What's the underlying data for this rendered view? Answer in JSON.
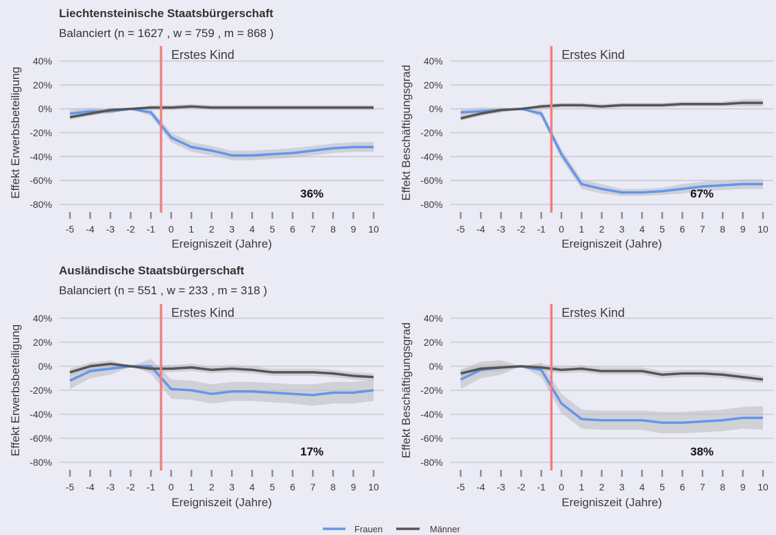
{
  "colors": {
    "background": "#EBEBF5",
    "grid": "#C9C9D1",
    "women": "#6495ED",
    "men": "#555555",
    "ribbon": "#BEBEC3",
    "event_line": "#F08080",
    "tick_mark": "#8C8C8C"
  },
  "sections": [
    {
      "title": "Liechtensteinische Staatsbürgerschaft",
      "subtitle": "Balanciert  (n = 1627 , w = 759 , m = 868 )"
    },
    {
      "title": "Ausländische Staatsbürgerschaft",
      "subtitle": "Balanciert  (n = 551 , w = 233 , m = 318 )"
    }
  ],
  "legend": {
    "items": [
      {
        "label": "Frauen",
        "color": "#6495ED"
      },
      {
        "label": "Männer",
        "color": "#555555"
      }
    ]
  },
  "chart_data": [
    {
      "type": "line",
      "section": 0,
      "ylabel": "Effekt  Erwerbsbeteiligung",
      "xlabel": "Ereigniszeit (Jahre)",
      "event_label": "Erstes Kind",
      "event_x": -0.5,
      "annotation": "36%",
      "x": [
        -5,
        -4,
        -3,
        -2,
        -1,
        0,
        1,
        2,
        3,
        4,
        5,
        6,
        7,
        8,
        9,
        10
      ],
      "x_tick_labels": [
        "-5",
        "-4",
        "-3",
        "-2",
        "-1",
        "0",
        "1",
        "2",
        "3",
        "4",
        "5",
        "6",
        "7",
        "8",
        "9",
        "10"
      ],
      "xlim": [
        -5.5,
        10.5
      ],
      "yticks": [
        40,
        20,
        0,
        -20,
        -40,
        -60,
        -80
      ],
      "ytick_labels": [
        "40%",
        "20%",
        "0%",
        "-20%",
        "-40%",
        "-60%",
        "-80%"
      ],
      "ylim": [
        -80,
        40
      ],
      "grid": true,
      "series": [
        {
          "name": "Frauen",
          "values": [
            -4,
            -2,
            -2,
            0,
            -3,
            -24,
            -32,
            -35,
            -39,
            -39,
            -38,
            -37,
            -35,
            -33,
            -32,
            -32
          ],
          "lower": [
            -7,
            -5,
            -4,
            0,
            -6,
            -28,
            -36,
            -39,
            -43,
            -43,
            -42,
            -41,
            -39,
            -37,
            -36,
            -36
          ],
          "upper": [
            -1,
            1,
            0,
            0,
            0,
            -20,
            -28,
            -31,
            -35,
            -35,
            -34,
            -33,
            -31,
            -29,
            -28,
            -28
          ]
        },
        {
          "name": "Männer",
          "values": [
            -7,
            -4,
            -1,
            0,
            1,
            1,
            2,
            1,
            1,
            1,
            1,
            1,
            1,
            1,
            1,
            1
          ],
          "lower": [
            -9,
            -6,
            -3,
            0,
            -1,
            -1,
            0,
            -1,
            -1,
            -1,
            -1,
            -1,
            -1,
            -1,
            -1,
            -1
          ],
          "upper": [
            -5,
            -2,
            1,
            0,
            3,
            3,
            4,
            3,
            3,
            3,
            3,
            3,
            3,
            3,
            3,
            3
          ]
        }
      ]
    },
    {
      "type": "line",
      "section": 0,
      "ylabel": "Effekt  Beschäftigungsgrad",
      "xlabel": "Ereigniszeit (Jahre)",
      "event_label": "Erstes Kind",
      "event_x": -0.5,
      "annotation": "67%",
      "x": [
        -5,
        -4,
        -3,
        -2,
        -1,
        0,
        1,
        2,
        3,
        4,
        5,
        6,
        7,
        8,
        9,
        10
      ],
      "x_tick_labels": [
        "-5",
        "-4",
        "-3",
        "-2",
        "-1",
        "0",
        "1",
        "2",
        "3",
        "4",
        "5",
        "6",
        "7",
        "8",
        "9",
        "10"
      ],
      "xlim": [
        -5.5,
        10.5
      ],
      "yticks": [
        40,
        20,
        0,
        -20,
        -40,
        -60,
        -80
      ],
      "ytick_labels": [
        "40%",
        "20%",
        "0%",
        "-20%",
        "-40%",
        "-60%",
        "-80%"
      ],
      "ylim": [
        -80,
        40
      ],
      "grid": true,
      "series": [
        {
          "name": "Frauen",
          "values": [
            -3,
            -2,
            -1,
            0,
            -4,
            -38,
            -63,
            -67,
            -70,
            -70,
            -69,
            -67,
            -65,
            -64,
            -63,
            -63
          ],
          "lower": [
            -6,
            -5,
            -3,
            0,
            -7,
            -42,
            -67,
            -71,
            -73,
            -73,
            -72,
            -71,
            -69,
            -68,
            -67,
            -67
          ],
          "upper": [
            0,
            1,
            1,
            0,
            -1,
            -34,
            -59,
            -63,
            -67,
            -67,
            -66,
            -63,
            -61,
            -60,
            -59,
            -59
          ]
        },
        {
          "name": "Männer",
          "values": [
            -8,
            -4,
            -1,
            0,
            2,
            3,
            3,
            2,
            3,
            3,
            3,
            4,
            4,
            4,
            5,
            5
          ],
          "lower": [
            -10,
            -6,
            -3,
            0,
            0,
            1,
            1,
            0,
            1,
            1,
            1,
            2,
            2,
            2,
            2,
            2
          ],
          "upper": [
            -6,
            -2,
            1,
            0,
            4,
            5,
            5,
            4,
            5,
            5,
            5,
            6,
            6,
            6,
            8,
            8
          ]
        }
      ]
    },
    {
      "type": "line",
      "section": 1,
      "ylabel": "Effekt  Erwerbsbeteiligung",
      "xlabel": "Ereigniszeit (Jahre)",
      "event_label": "Erstes Kind",
      "event_x": -0.5,
      "annotation": "17%",
      "x": [
        -5,
        -4,
        -3,
        -2,
        -1,
        0,
        1,
        2,
        3,
        4,
        5,
        6,
        7,
        8,
        9,
        10
      ],
      "x_tick_labels": [
        "-5",
        "-4",
        "-3",
        "-2",
        "-1",
        "0",
        "1",
        "2",
        "3",
        "4",
        "5",
        "6",
        "7",
        "8",
        "9",
        "10"
      ],
      "xlim": [
        -5.5,
        10.5
      ],
      "yticks": [
        40,
        20,
        0,
        -20,
        -40,
        -60,
        -80
      ],
      "ytick_labels": [
        "40%",
        "20%",
        "0%",
        "-20%",
        "-40%",
        "-60%",
        "-80%"
      ],
      "ylim": [
        -80,
        40
      ],
      "grid": true,
      "series": [
        {
          "name": "Frauen",
          "values": [
            -12,
            -4,
            -2,
            0,
            0,
            -19,
            -20,
            -23,
            -21,
            -21,
            -22,
            -23,
            -24,
            -22,
            -22,
            -20
          ],
          "lower": [
            -19,
            -10,
            -7,
            0,
            -6,
            -27,
            -28,
            -31,
            -29,
            -29,
            -30,
            -31,
            -33,
            -31,
            -31,
            -29
          ],
          "upper": [
            -5,
            2,
            3,
            0,
            6,
            -11,
            -12,
            -15,
            -13,
            -13,
            -14,
            -15,
            -15,
            -13,
            -13,
            -11
          ]
        },
        {
          "name": "Männer",
          "values": [
            -5,
            0,
            2,
            0,
            -2,
            -2,
            -1,
            -3,
            -2,
            -3,
            -5,
            -5,
            -5,
            -6,
            -8,
            -9
          ],
          "lower": [
            -8,
            -3,
            -1,
            0,
            -5,
            -5,
            -4,
            -6,
            -5,
            -6,
            -8,
            -8,
            -8,
            -9,
            -11,
            -12
          ],
          "upper": [
            -2,
            3,
            5,
            0,
            1,
            1,
            2,
            0,
            1,
            0,
            -2,
            -2,
            -2,
            -3,
            -5,
            -6
          ]
        }
      ]
    },
    {
      "type": "line",
      "section": 1,
      "ylabel": "Effekt  Beschäftigungsgrad",
      "xlabel": "Ereigniszeit (Jahre)",
      "event_label": "Erstes Kind",
      "event_x": -0.5,
      "annotation": "38%",
      "x": [
        -5,
        -4,
        -3,
        -2,
        -1,
        0,
        1,
        2,
        3,
        4,
        5,
        6,
        7,
        8,
        9,
        10
      ],
      "x_tick_labels": [
        "-5",
        "-4",
        "-3",
        "-2",
        "-1",
        "0",
        "1",
        "2",
        "3",
        "4",
        "5",
        "6",
        "7",
        "8",
        "9",
        "10"
      ],
      "xlim": [
        -5.5,
        10.5
      ],
      "yticks": [
        40,
        20,
        0,
        -20,
        -40,
        -60,
        -80
      ],
      "ytick_labels": [
        "40%",
        "20%",
        "0%",
        "-20%",
        "-40%",
        "-60%",
        "-80%"
      ],
      "ylim": [
        -80,
        40
      ],
      "grid": true,
      "series": [
        {
          "name": "Frauen",
          "values": [
            -11,
            -3,
            -1,
            0,
            -3,
            -31,
            -44,
            -45,
            -45,
            -45,
            -47,
            -47,
            -46,
            -45,
            -43,
            -43
          ],
          "lower": [
            -19,
            -10,
            -7,
            0,
            -9,
            -39,
            -52,
            -53,
            -53,
            -53,
            -56,
            -56,
            -55,
            -54,
            -52,
            -53
          ],
          "upper": [
            -3,
            4,
            5,
            0,
            3,
            -23,
            -36,
            -37,
            -37,
            -37,
            -38,
            -38,
            -37,
            -36,
            -34,
            -33
          ]
        },
        {
          "name": "Männer",
          "values": [
            -6,
            -2,
            -1,
            0,
            -1,
            -3,
            -2,
            -4,
            -4,
            -4,
            -7,
            -6,
            -6,
            -7,
            -9,
            -11
          ],
          "lower": [
            -9,
            -5,
            -4,
            0,
            -4,
            -6,
            -5,
            -7,
            -7,
            -7,
            -10,
            -9,
            -9,
            -10,
            -12,
            -14
          ],
          "upper": [
            -3,
            1,
            2,
            0,
            2,
            0,
            1,
            -1,
            -1,
            -1,
            -4,
            -3,
            -3,
            -4,
            -6,
            -8
          ]
        }
      ]
    }
  ]
}
